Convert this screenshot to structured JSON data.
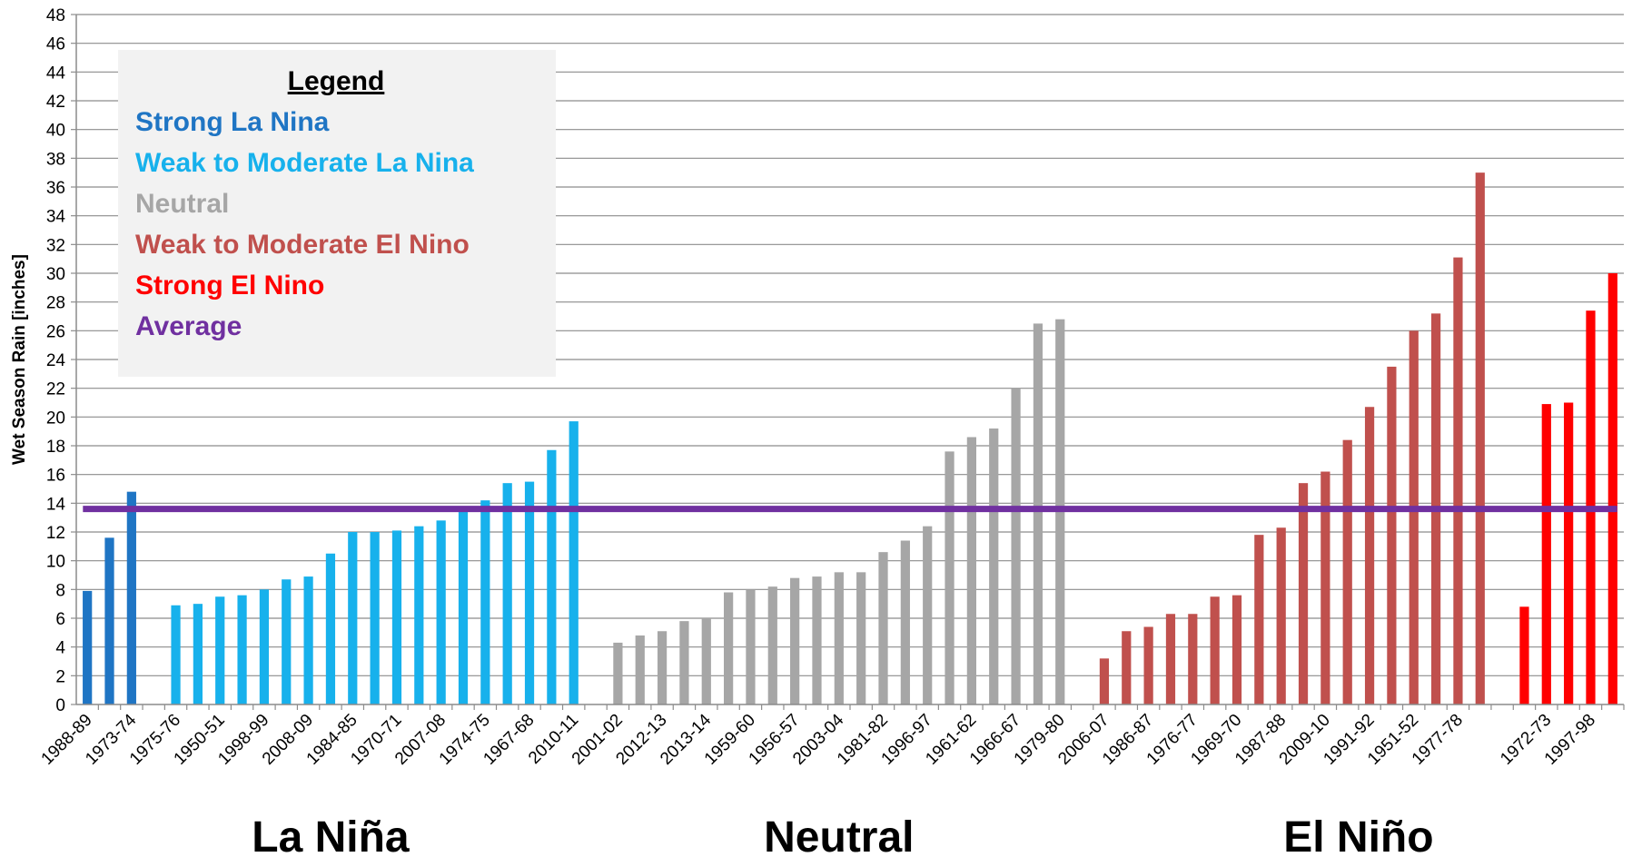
{
  "chart_data": {
    "type": "bar",
    "ylabel": "Wet Season Rain [inches]",
    "ylim": [
      0,
      48
    ],
    "ytick_step": 2,
    "grid": true,
    "average": 13.6,
    "legend": {
      "title": "Legend",
      "placement": "top-left",
      "items": [
        {
          "label": "Strong La Nina",
          "color": "#1f75c4"
        },
        {
          "label": "Weak to Moderate La Nina",
          "color": "#17b1ec"
        },
        {
          "label": "Neutral",
          "color": "#a6a6a6"
        },
        {
          "label": "Weak to Moderate El Nino",
          "color": "#c0504d"
        },
        {
          "label": "Strong El Nino",
          "color": "#ff0000"
        },
        {
          "label": "Average",
          "color": "#7030a0"
        }
      ]
    },
    "group_labels": [
      {
        "text": "La Niña"
      },
      {
        "text": "Neutral"
      },
      {
        "text": "El Niño"
      }
    ],
    "series": [
      {
        "name": "Strong La Nina",
        "color": "#1f75c4",
        "values": [
          7.9,
          11.6,
          14.8
        ],
        "labels": [
          "1988-89",
          "",
          "1973-74"
        ]
      },
      {
        "name": "Weak to Moderate La Nina",
        "color": "#17b1ec",
        "values": [
          6.9,
          7.0,
          7.5,
          7.6,
          8.0,
          8.7,
          8.9,
          10.5,
          12.0,
          12.0,
          12.1,
          12.4,
          12.8,
          13.5,
          14.2,
          15.4,
          15.5,
          17.7,
          19.7
        ],
        "labels": [
          "1975-76",
          "",
          "1950-51",
          "",
          "1998-99",
          "",
          "2008-09",
          "",
          "1984-85",
          "",
          "1970-71",
          "",
          "2007-08",
          "",
          "1974-75",
          "",
          "1967-68",
          "",
          "2010-11"
        ]
      },
      {
        "name": "Neutral",
        "color": "#a6a6a6",
        "values": [
          4.3,
          4.8,
          5.1,
          5.8,
          6.0,
          7.8,
          8.0,
          8.2,
          8.8,
          8.9,
          9.2,
          9.2,
          10.6,
          11.4,
          12.4,
          17.6,
          18.6,
          19.2,
          22.0,
          26.5,
          26.8
        ],
        "labels": [
          "2001-02",
          "",
          "2012-13",
          "",
          "2013-14",
          "",
          "1959-60",
          "",
          "1956-57",
          "",
          "2003-04",
          "",
          "1981-82",
          "",
          "1996-97",
          "",
          "1961-62",
          "",
          "1966-67",
          "",
          "1979-80"
        ]
      },
      {
        "name": "Weak to Moderate El Nino",
        "color": "#c0504d",
        "values": [
          3.2,
          5.1,
          5.4,
          6.3,
          6.3,
          7.5,
          7.6,
          11.8,
          12.3,
          15.4,
          16.2,
          18.4,
          20.7,
          23.5,
          26.0,
          27.2,
          31.1,
          37.0
        ],
        "labels": [
          "2006-07",
          "",
          "1986-87",
          "",
          "1976-77",
          "",
          "1969-70",
          "",
          "1987-88",
          "",
          "2009-10",
          "",
          "1991-92",
          "",
          "1951-52",
          "",
          "1977-78",
          ""
        ]
      },
      {
        "name": "Strong El Nino",
        "color": "#ff0000",
        "values": [
          6.8,
          20.9,
          21.0,
          27.4,
          30.0
        ],
        "labels": [
          "",
          "1972-73",
          "",
          "1997-98",
          ""
        ]
      }
    ]
  }
}
